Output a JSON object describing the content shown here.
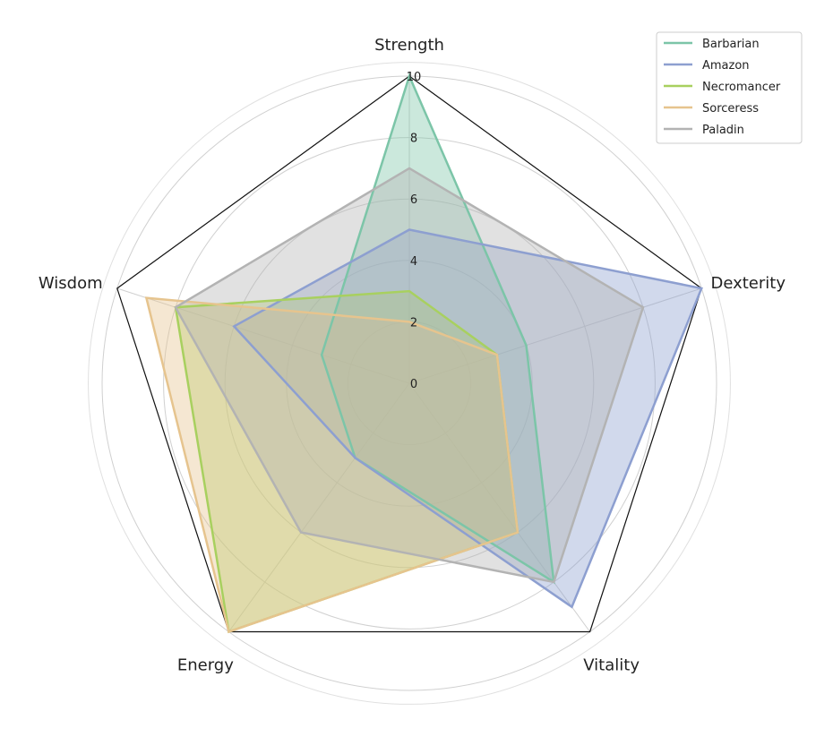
{
  "chart_data": {
    "type": "radar",
    "axes": [
      "Strength",
      "Dexterity",
      "Vitality",
      "Energy",
      "Wisdom"
    ],
    "rlim": [
      0,
      10
    ],
    "rticks": [
      0,
      2,
      4,
      6,
      8,
      10
    ],
    "rtick_labels": [
      "0",
      "2",
      "4",
      "6",
      "8",
      "10"
    ],
    "legend_position": "top-right",
    "grid": true,
    "series": [
      {
        "name": "Barbarian",
        "color": "#7cc5a8",
        "values": [
          10,
          4,
          8,
          3,
          3
        ]
      },
      {
        "name": "Amazon",
        "color": "#8d9fd0",
        "values": [
          5,
          10,
          9,
          3,
          6
        ]
      },
      {
        "name": "Necromancer",
        "color": "#a8d05f",
        "values": [
          3,
          3,
          6,
          10,
          8
        ]
      },
      {
        "name": "Sorceress",
        "color": "#e6c48e",
        "values": [
          2,
          3,
          6,
          10,
          9
        ]
      },
      {
        "name": "Paladin",
        "color": "#b3b3b3",
        "values": [
          7,
          8,
          8,
          6,
          8
        ]
      }
    ]
  }
}
